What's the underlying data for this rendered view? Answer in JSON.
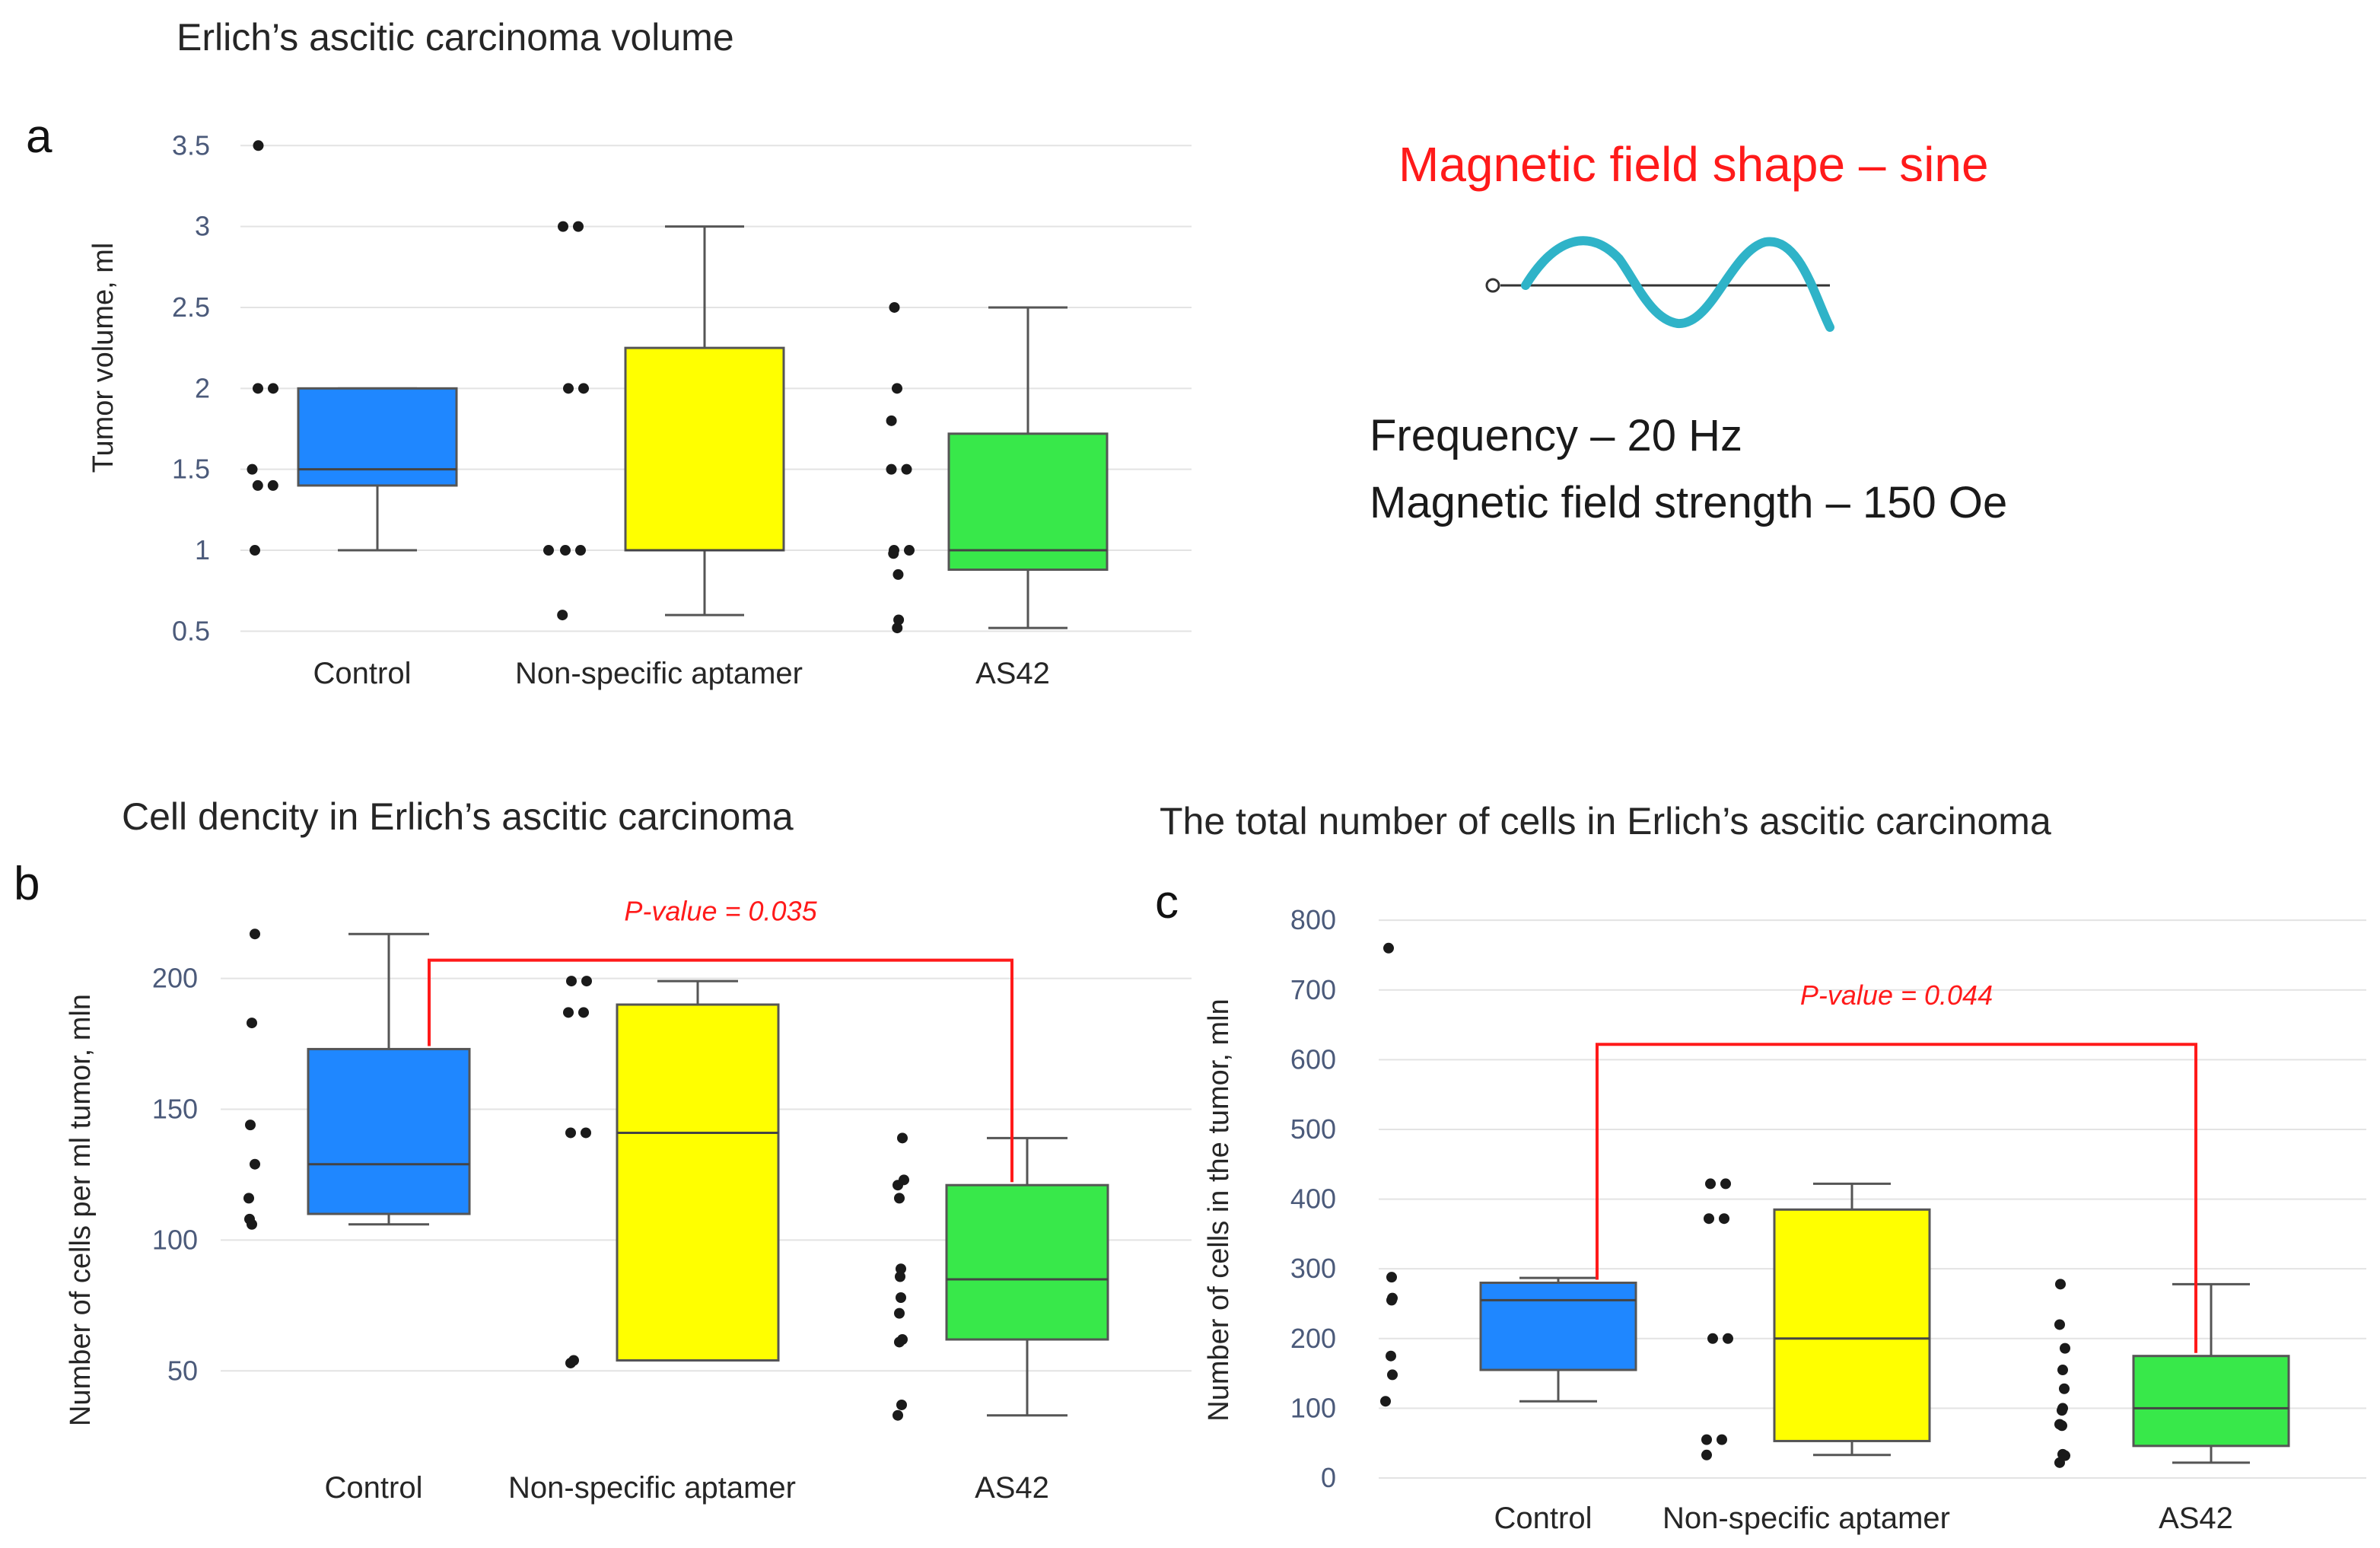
{
  "annotations": {
    "shape_title": "Magnetic field shape – sine",
    "frequency": "Frequency – 20 Hz",
    "strength": "Magnetic field strength – 150 Oe"
  },
  "colors": {
    "control": "#1f87ff",
    "nonspecific": "#ffff00",
    "as42": "#38e84a",
    "pvalue": "#ff1a1a",
    "sine": "#2fb3c8"
  },
  "chart_data": [
    {
      "id": "a",
      "type": "box",
      "letter": "a",
      "title": "Erlich’s ascitic carcinoma volume",
      "ylabel": "Tumor volume, ml",
      "ylim": [
        0.45,
        3.6
      ],
      "yticks": [
        0.5,
        1,
        1.5,
        2,
        2.5,
        3,
        3.5
      ],
      "ytick_labels": [
        "0.5",
        "1",
        "1.5",
        "2",
        "2.5",
        "3",
        "3.5"
      ],
      "categories": [
        "Control",
        "Non-specific aptamer",
        "AS42"
      ],
      "boxes": [
        {
          "min": 1.0,
          "q1": 1.4,
          "median": 1.5,
          "q3": 2.0,
          "max": 2.0
        },
        {
          "min": 0.6,
          "q1": 1.0,
          "median": 1.0,
          "q3": 2.25,
          "max": 3.0
        },
        {
          "min": 0.52,
          "q1": 0.88,
          "median": 1.0,
          "q3": 1.72,
          "max": 2.5
        }
      ],
      "points": [
        [
          3.5,
          2.0,
          2.0,
          1.5,
          1.4,
          1.4,
          1.0
        ],
        [
          3.0,
          3.0,
          2.0,
          2.0,
          1.0,
          1.0,
          1.0,
          0.6
        ],
        [
          2.5,
          2.0,
          1.8,
          1.5,
          1.5,
          1.0,
          1.0,
          0.98,
          0.85,
          0.57,
          0.52
        ]
      ]
    },
    {
      "id": "b",
      "type": "box",
      "letter": "b",
      "title": "Cell dencity in Erlich’s ascitic carcinoma",
      "ylabel": "Number of cells per ml tumor, mln",
      "ylim": [
        30,
        222
      ],
      "yticks": [
        50,
        100,
        150,
        200
      ],
      "ytick_labels": [
        "50",
        "100",
        "150",
        "200"
      ],
      "categories": [
        "Control",
        "Non-specific aptamer",
        "AS42"
      ],
      "boxes": [
        {
          "min": 106,
          "q1": 110,
          "median": 129,
          "q3": 173,
          "max": 217
        },
        {
          "min": 54,
          "q1": 54,
          "median": 141,
          "q3": 190,
          "max": 199
        },
        {
          "min": 33,
          "q1": 62,
          "median": 85,
          "q3": 121,
          "max": 139
        }
      ],
      "points": [
        [
          217,
          183,
          144,
          129,
          116,
          108,
          106
        ],
        [
          199,
          199,
          187,
          187,
          141,
          141,
          54,
          53
        ],
        [
          139,
          123,
          121,
          116,
          89,
          86,
          78,
          72,
          62,
          61,
          37,
          33
        ]
      ],
      "pvalue": {
        "label": "P-value = 0.035",
        "from": 0,
        "to": 2,
        "level": 207
      }
    },
    {
      "id": "c",
      "type": "box",
      "letter": "c",
      "title": "The total number of cells in Erlich’s ascitic carcinoma",
      "ylabel": "Number of cells in the tumor, mln",
      "ylim": [
        0,
        810
      ],
      "yticks": [
        0,
        100,
        200,
        300,
        400,
        500,
        600,
        700,
        800
      ],
      "ytick_labels": [
        "0",
        "100",
        "200",
        "300",
        "400",
        "500",
        "600",
        "700",
        "800"
      ],
      "categories": [
        "Control",
        "Non-specific aptamer",
        "AS42"
      ],
      "boxes": [
        {
          "min": 110,
          "q1": 155,
          "median": 255,
          "q3": 280,
          "max": 287
        },
        {
          "min": 33,
          "q1": 53,
          "median": 200,
          "q3": 385,
          "max": 422
        },
        {
          "min": 22,
          "q1": 46,
          "median": 100,
          "q3": 175,
          "max": 278
        }
      ],
      "points": [
        [
          760,
          288,
          258,
          255,
          175,
          148,
          110
        ],
        [
          422,
          422,
          372,
          372,
          200,
          200,
          55,
          55,
          33
        ],
        [
          278,
          220,
          186,
          155,
          128,
          100,
          97,
          77,
          75,
          34,
          32,
          22
        ]
      ],
      "pvalue": {
        "label": "P-value = 0.044",
        "from": 0,
        "to": 2,
        "level": 622
      }
    }
  ]
}
